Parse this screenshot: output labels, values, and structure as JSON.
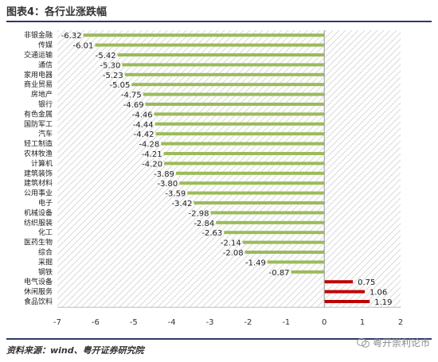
{
  "figure_title": "图表4：各行业涨跌幅",
  "source_text": "资料来源：wind、粤开证券研究院",
  "watermark": "粤开崇利论市",
  "icons": {
    "watermark_icon": "wechat-icon"
  },
  "colors": {
    "negative_bar": "#9bbb59",
    "positive_bar": "#c00000",
    "title_rule": "#2d3a6a",
    "hatch": "#d9d9d9"
  },
  "chart_data": {
    "type": "bar",
    "orientation": "horizontal",
    "categories": [
      "非银金融",
      "传媒",
      "交通运输",
      "通信",
      "家用电器",
      "商业贸易",
      "房地产",
      "银行",
      "有色金属",
      "国防军工",
      "汽车",
      "轻工制造",
      "农林牧渔",
      "计算机",
      "建筑装饰",
      "建筑材料",
      "公用事业",
      "电子",
      "机械设备",
      "纺织服装",
      "化工",
      "医药生物",
      "综合",
      "采掘",
      "钢铁",
      "电气设备",
      "休闲服务",
      "食品饮料"
    ],
    "values": [
      -6.32,
      -6.01,
      -5.42,
      -5.3,
      -5.23,
      -5.05,
      -4.75,
      -4.69,
      -4.46,
      -4.44,
      -4.42,
      -4.28,
      -4.21,
      -4.2,
      -3.89,
      -3.8,
      -3.59,
      -3.42,
      -2.98,
      -2.84,
      -2.63,
      -2.14,
      -2.08,
      -1.49,
      -0.87,
      0.75,
      1.06,
      1.19
    ],
    "value_labels": [
      "-6.32",
      "-6.01",
      "-5.42",
      "-5.30",
      "-5.23",
      "-5.05",
      "-4.75",
      "-4.69",
      "-4.46",
      "-4.44",
      "-4.42",
      "-4.28",
      "-4.21",
      "-4.20",
      "-3.89",
      "-3.80",
      "-3.59",
      "-3.42",
      "-2.98",
      "-2.84",
      "-2.63",
      "-2.14",
      "-2.08",
      "-1.49",
      "-0.87",
      "0.75",
      "1.06",
      "1.19"
    ],
    "xlim": [
      -7,
      2
    ],
    "xticks": [
      -7,
      -6,
      -5,
      -4,
      -3,
      -2,
      -1,
      0,
      1,
      2
    ],
    "grid": false,
    "legend": "none"
  }
}
